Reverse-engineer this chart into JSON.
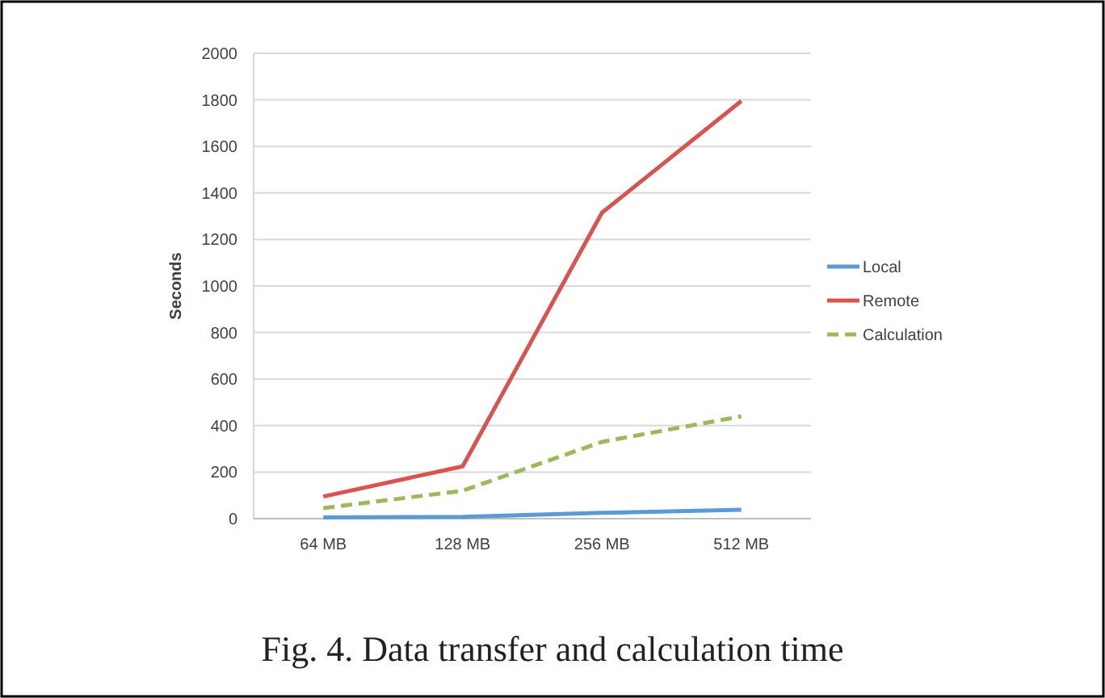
{
  "chart_data": {
    "type": "line",
    "title": "Fig. 4. Data transfer and calculation time",
    "ylabel": "Seconds",
    "categories": [
      "64 MB",
      "128 MB",
      "256 MB",
      "512 MB"
    ],
    "series": [
      {
        "name": "Local",
        "color": "#5b9bd5",
        "values": [
          5,
          8,
          25,
          38
        ],
        "line_style": "solid"
      },
      {
        "name": "Remote",
        "color": "#d9534f",
        "values": [
          95,
          225,
          1315,
          1795
        ],
        "line_style": "solid"
      },
      {
        "name": "Calculation",
        "color": "#9bbb59",
        "values": [
          45,
          120,
          330,
          440
        ],
        "line_style": "dashed"
      }
    ],
    "ylim": [
      0,
      2000
    ],
    "yticks": [
      0,
      200,
      400,
      600,
      800,
      1000,
      1200,
      1400,
      1600,
      1800,
      2000
    ],
    "grid": "y",
    "legend": "right",
    "marker": "none"
  }
}
